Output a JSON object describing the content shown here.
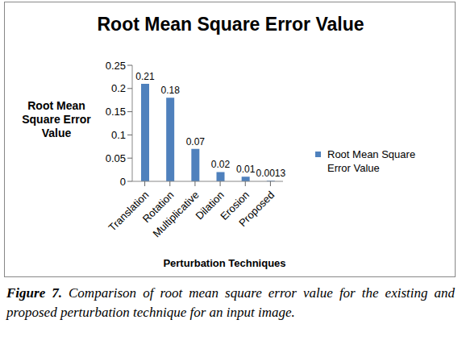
{
  "chart_data": {
    "type": "bar",
    "title": "Root Mean Square Error Value",
    "y_label": "Root Mean Square Error Value",
    "x_label": "Perturbation Techniques",
    "categories": [
      "Translation",
      "Rotation",
      "Multiplicative",
      "Dilation",
      "Erosion",
      "Proposed"
    ],
    "series": [
      {
        "name": "Root Mean Square Error Value",
        "color": "#4f81bd",
        "values": [
          0.21,
          0.18,
          0.07,
          0.02,
          0.01,
          0.0013
        ]
      }
    ],
    "ylim": [
      0,
      0.25
    ],
    "yticks": [
      0,
      0.05,
      0.1,
      0.15,
      0.2,
      0.25
    ],
    "grid": false,
    "legend": "right",
    "data_labels": true,
    "caption_label": "Figure 7.",
    "caption": "Comparison of root mean square error value for the existing and proposed perturbation technique for an input image."
  }
}
